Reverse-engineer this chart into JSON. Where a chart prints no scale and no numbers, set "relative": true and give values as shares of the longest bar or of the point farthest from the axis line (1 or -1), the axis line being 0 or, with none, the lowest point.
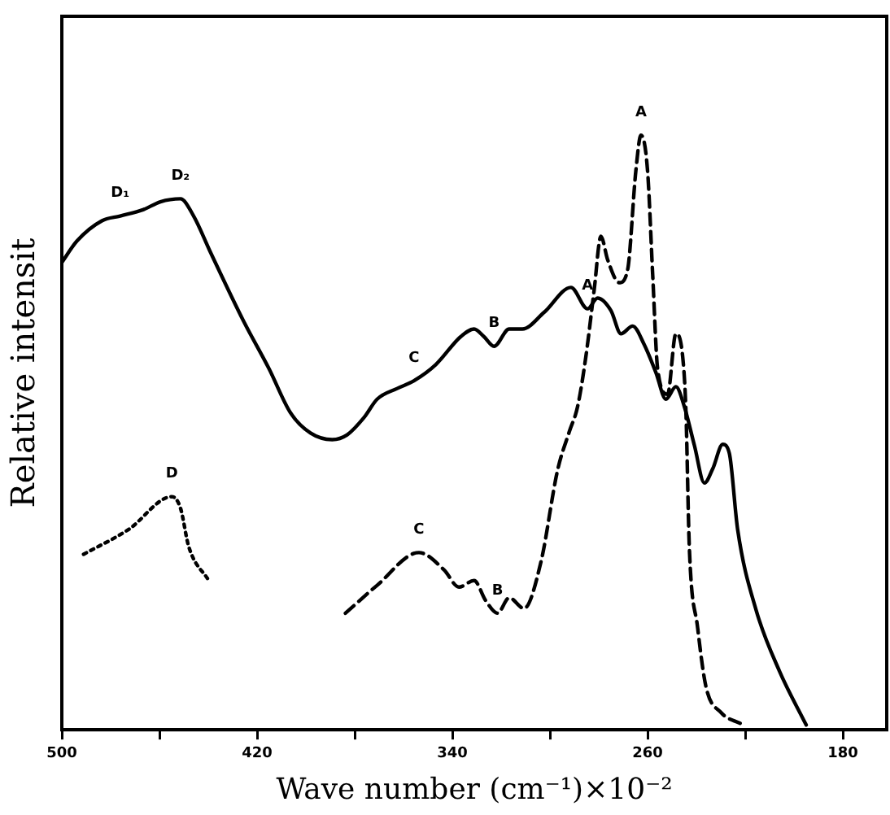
{
  "chart_data": {
    "type": "line",
    "relative": true,
    "xlabel": "Wave number (cm⁻¹)×10⁻²",
    "ylabel": "Relative intensit",
    "xlim": [
      500,
      162
    ],
    "xticks": [
      500,
      {
        "value": 460,
        "label": null
      },
      420,
      {
        "value": 380,
        "label": null
      },
      340,
      {
        "value": 300,
        "label": null
      },
      260,
      {
        "value": 220,
        "label": null
      },
      180
    ],
    "grid": false,
    "legend": false,
    "marker": "none",
    "series": [
      {
        "color": "#000000",
        "line_style": "solid",
        "x": [
          500,
          493.8,
          483.6,
          476.1,
          466.5,
          459.6,
          451.4,
          446.0,
          439.2,
          425.5,
          415.2,
          406.3,
          398.1,
          389.2,
          383.1,
          376.2,
          370.8,
          362.6,
          355.7,
          346.8,
          336.6,
          331.1,
          327.0,
          322.9,
          316.7,
          311.3,
          302.4,
          291.4,
          284.6,
          280.5,
          275.0,
          270.9,
          266.1,
          261.4,
          256.6,
          252.5,
          248.4,
          244.9,
          240.8,
          236.7,
          233.3,
          229.2,
          226.5,
          223.1,
          215.5,
          206.0,
          195.0
        ],
        "values": [
          0.786,
          0.822,
          0.856,
          0.864,
          0.875,
          0.888,
          0.893,
          0.864,
          0.804,
          0.687,
          0.608,
          0.533,
          0.499,
          0.488,
          0.496,
          0.525,
          0.556,
          0.574,
          0.587,
          0.614,
          0.661,
          0.674,
          0.661,
          0.645,
          0.674,
          0.674,
          0.702,
          0.744,
          0.708,
          0.726,
          0.705,
          0.666,
          0.679,
          0.648,
          0.601,
          0.556,
          0.577,
          0.543,
          0.478,
          0.415,
          0.439,
          0.48,
          0.465,
          0.337,
          0.201,
          0.099,
          0.008
        ]
      },
      {
        "color": "#000000",
        "line_style": "dashed",
        "x": [
          383.8,
          370.8,
          353.7,
          343.4,
          337.3,
          331.1,
          326.3,
          321.5,
          316.7,
          310.6,
          303.7,
          296.9,
          292.1,
          288.7,
          285.3,
          281.9,
          279.1,
          276.4,
          271.6,
          268.2,
          264.8,
          262.7,
          260.0,
          257.9,
          255.9,
          251.8,
          248.4,
          245.6,
          244.3,
          242.9,
          239.5,
          236.1,
          229.9,
          221.7
        ],
        "values": [
          0.196,
          0.243,
          0.298,
          0.269,
          0.24,
          0.251,
          0.217,
          0.196,
          0.222,
          0.204,
          0.282,
          0.436,
          0.501,
          0.543,
          0.627,
          0.739,
          0.83,
          0.791,
          0.752,
          0.773,
          0.94,
          1,
          0.94,
          0.765,
          0.608,
          0.564,
          0.666,
          0.627,
          0.538,
          0.308,
          0.172,
          0.073,
          0.029,
          0.01
        ]
      },
      {
        "color": "#000000",
        "line_style": "dotted",
        "x": [
          491.1,
          472.6,
          454.9,
          451.4,
          448.0,
          439.8
        ],
        "values": [
          0.295,
          0.337,
          0.392,
          0.373,
          0.308,
          0.251
        ]
      }
    ],
    "annotations": [
      {
        "text": "D₁",
        "x": 476.1,
        "y": 0.864
      },
      {
        "text": "D₂",
        "x": 451.4,
        "y": 0.893
      },
      {
        "text": "C",
        "x": 355.7,
        "y": 0.587
      },
      {
        "text": "B",
        "x": 322.9,
        "y": 0.645
      },
      {
        "text": "A",
        "x": 284.6,
        "y": 0.708
      },
      {
        "text": "A",
        "x": 262.7,
        "y": 1
      },
      {
        "text": "C",
        "x": 353.7,
        "y": 0.298
      },
      {
        "text": "B",
        "x": 321.5,
        "y": 0.196
      },
      {
        "text": "D",
        "x": 454.9,
        "y": 0.392
      }
    ]
  }
}
